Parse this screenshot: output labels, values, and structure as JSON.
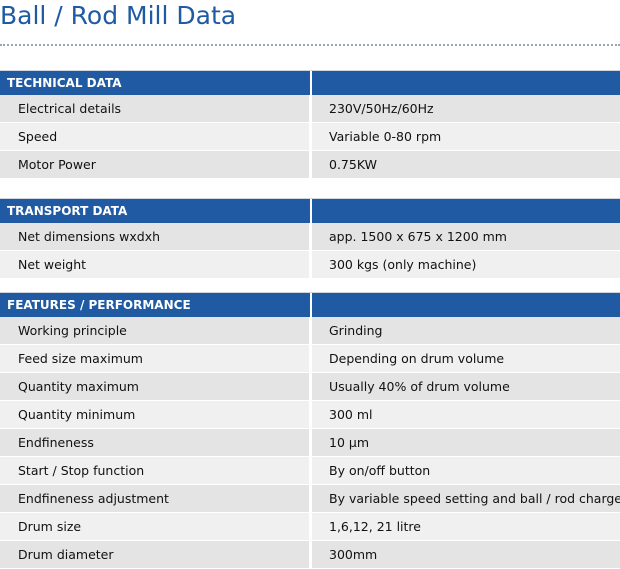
{
  "title": "Ball / Rod Mill Data",
  "sections": [
    {
      "header": "TECHNICAL DATA",
      "rows": [
        [
          "Electrical details",
          "230V/50Hz/60Hz"
        ],
        [
          "Speed",
          "Variable 0-80 rpm"
        ],
        [
          "Motor Power",
          "0.75KW"
        ]
      ]
    },
    {
      "header": "TRANSPORT DATA",
      "rows": [
        [
          "Net dimensions wxdxh",
          "app. 1500 x 675 x 1200 mm"
        ],
        [
          "Net weight",
          "300 kgs (only machine)"
        ]
      ]
    },
    {
      "header": "FEATURES / PERFORMANCE",
      "rows": [
        [
          "Working principle",
          "Grinding"
        ],
        [
          "Feed size maximum",
          "Depending on drum volume"
        ],
        [
          "Quantity maximum",
          "Usually 40% of drum volume"
        ],
        [
          "Quantity minimum",
          "300 ml"
        ],
        [
          "Endfineness",
          "10 µm"
        ],
        [
          "Start / Stop function",
          "By on/off button"
        ],
        [
          "Endfineness adjustment",
          "By variable speed setting and ball / rod charge"
        ],
        [
          "Drum size",
          "1,6,12, 21 litre"
        ],
        [
          "Drum diameter",
          "300mm"
        ]
      ]
    }
  ],
  "colors": {
    "accent": "#1f5aa3",
    "row_odd": "#e4e4e4",
    "row_even": "#f0f0f0"
  }
}
